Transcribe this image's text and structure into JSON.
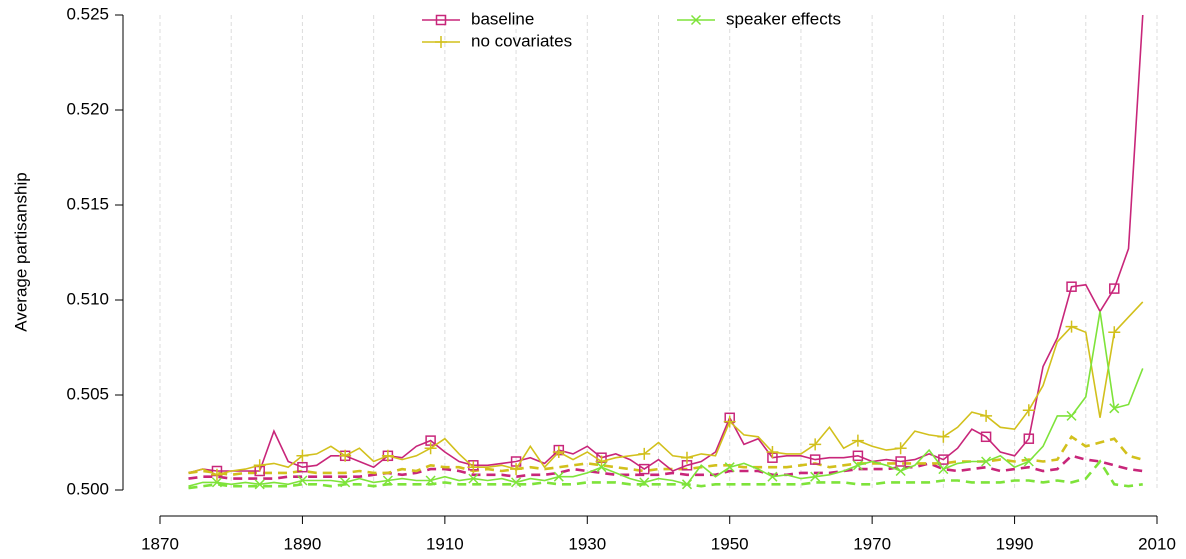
{
  "chart_data": {
    "type": "line",
    "ylabel": "Average partisanship",
    "x": [
      1874,
      1876,
      1878,
      1880,
      1882,
      1884,
      1886,
      1888,
      1890,
      1892,
      1894,
      1896,
      1898,
      1900,
      1902,
      1904,
      1906,
      1908,
      1910,
      1912,
      1914,
      1916,
      1918,
      1920,
      1922,
      1924,
      1926,
      1928,
      1930,
      1932,
      1934,
      1936,
      1938,
      1940,
      1942,
      1944,
      1946,
      1948,
      1950,
      1952,
      1954,
      1956,
      1958,
      1960,
      1962,
      1964,
      1966,
      1968,
      1970,
      1972,
      1974,
      1976,
      1978,
      1980,
      1982,
      1984,
      1986,
      1988,
      1990,
      1992,
      1994,
      1996,
      1998,
      2000,
      2002,
      2004,
      2006,
      2008
    ],
    "series": [
      {
        "name": "baseline",
        "color": "#c8267a",
        "marker": "square",
        "linestyle": "solid",
        "values": [
          0.5009,
          0.5011,
          0.501,
          0.501,
          0.501,
          0.501,
          0.5031,
          0.5015,
          0.5012,
          0.5013,
          0.5018,
          0.5018,
          0.5015,
          0.5012,
          0.5018,
          0.5017,
          0.5023,
          0.5026,
          0.502,
          0.5015,
          0.5013,
          0.5013,
          0.5014,
          0.5015,
          0.5017,
          0.5014,
          0.5021,
          0.5019,
          0.5023,
          0.5017,
          0.5019,
          0.5016,
          0.5011,
          0.5016,
          0.501,
          0.5013,
          0.5015,
          0.502,
          0.5038,
          0.5024,
          0.5027,
          0.5017,
          0.5018,
          0.5018,
          0.5016,
          0.5017,
          0.5017,
          0.5018,
          0.5015,
          0.5016,
          0.5015,
          0.5016,
          0.5019,
          0.5016,
          0.5022,
          0.5032,
          0.5028,
          0.502,
          0.5018,
          0.5027,
          0.5065,
          0.508,
          0.5107,
          0.5108,
          0.5094,
          0.5106,
          0.5127,
          0.525
        ]
      },
      {
        "name": "no covariates",
        "color": "#d2c01c",
        "marker": "plus",
        "linestyle": "solid",
        "values": [
          0.5009,
          0.5011,
          0.5008,
          0.501,
          0.5011,
          0.5013,
          0.5014,
          0.5012,
          0.5018,
          0.5019,
          0.5023,
          0.5018,
          0.5022,
          0.5015,
          0.5018,
          0.5016,
          0.5018,
          0.5022,
          0.5027,
          0.5019,
          0.5012,
          0.5012,
          0.5013,
          0.5011,
          0.5023,
          0.5012,
          0.502,
          0.5016,
          0.502,
          0.5015,
          0.5017,
          0.5018,
          0.5019,
          0.5025,
          0.5018,
          0.5017,
          0.5019,
          0.5018,
          0.5036,
          0.5029,
          0.5028,
          0.502,
          0.5019,
          0.5019,
          0.5024,
          0.5033,
          0.5022,
          0.5026,
          0.5023,
          0.5021,
          0.5022,
          0.5031,
          0.5029,
          0.5028,
          0.5033,
          0.5041,
          0.5039,
          0.5033,
          0.5032,
          0.5042,
          0.5055,
          0.5078,
          0.5086,
          0.5083,
          0.5038,
          0.5083,
          0.5091,
          0.5099
        ]
      },
      {
        "name": "speaker effects",
        "color": "#7ee33a",
        "marker": "x",
        "linestyle": "solid",
        "values": [
          0.5002,
          0.5004,
          0.5004,
          0.5003,
          0.5004,
          0.5003,
          0.5004,
          0.5003,
          0.5005,
          0.5005,
          0.5005,
          0.5004,
          0.5006,
          0.5004,
          0.5005,
          0.5006,
          0.5005,
          0.5005,
          0.5007,
          0.5005,
          0.5006,
          0.5005,
          0.5006,
          0.5004,
          0.5006,
          0.5005,
          0.5007,
          0.5007,
          0.5009,
          0.5012,
          0.5009,
          0.5006,
          0.5004,
          0.5006,
          0.5005,
          0.5003,
          0.5013,
          0.5007,
          0.5012,
          0.5014,
          0.5011,
          0.5007,
          0.5008,
          0.5006,
          0.5007,
          0.5008,
          0.501,
          0.5013,
          0.5015,
          0.5013,
          0.501,
          0.5013,
          0.5021,
          0.5011,
          0.5014,
          0.5015,
          0.5015,
          0.5018,
          0.5012,
          0.5015,
          0.5023,
          0.5039,
          0.5039,
          0.5049,
          0.5094,
          0.5043,
          0.5045,
          0.5064
        ]
      },
      {
        "color": "#c8267a",
        "linestyle": "dashed",
        "values": [
          0.5006,
          0.5007,
          0.5007,
          0.5006,
          0.5006,
          0.5006,
          0.5006,
          0.5007,
          0.5007,
          0.5007,
          0.5007,
          0.5007,
          0.5007,
          0.5008,
          0.5009,
          0.5008,
          0.5009,
          0.5011,
          0.5011,
          0.501,
          0.5008,
          0.5008,
          0.5008,
          0.5007,
          0.5008,
          0.5008,
          0.5009,
          0.5011,
          0.501,
          0.5009,
          0.5008,
          0.5008,
          0.5008,
          0.5008,
          0.5009,
          0.5008,
          0.5008,
          0.5008,
          0.501,
          0.501,
          0.501,
          0.5008,
          0.5008,
          0.5009,
          0.5009,
          0.5009,
          0.501,
          0.5011,
          0.5011,
          0.5011,
          0.5012,
          0.5012,
          0.5014,
          0.5011,
          0.501,
          0.5011,
          0.5012,
          0.501,
          0.5011,
          0.5012,
          0.501,
          0.5011,
          0.5018,
          0.5016,
          0.5015,
          0.5013,
          0.5011,
          0.501
        ]
      },
      {
        "color": "#d2c01c",
        "linestyle": "dashed",
        "values": [
          0.5009,
          0.501,
          0.5009,
          0.5008,
          0.5009,
          0.5009,
          0.5009,
          0.5009,
          0.501,
          0.5009,
          0.5009,
          0.5009,
          0.501,
          0.5009,
          0.5009,
          0.5011,
          0.501,
          0.5013,
          0.5012,
          0.5012,
          0.501,
          0.5011,
          0.501,
          0.5011,
          0.5012,
          0.5011,
          0.5012,
          0.5013,
          0.5014,
          0.5013,
          0.5012,
          0.5011,
          0.501,
          0.5011,
          0.5011,
          0.5011,
          0.5012,
          0.5013,
          0.5013,
          0.5012,
          0.5012,
          0.5012,
          0.5012,
          0.5013,
          0.5014,
          0.5012,
          0.5013,
          0.5014,
          0.5014,
          0.5014,
          0.5014,
          0.5014,
          0.5014,
          0.5014,
          0.5015,
          0.5015,
          0.5015,
          0.5016,
          0.5015,
          0.5016,
          0.5015,
          0.5016,
          0.5028,
          0.5023,
          0.5025,
          0.5027,
          0.5018,
          0.5016
        ]
      },
      {
        "color": "#7ee33a",
        "linestyle": "dashed",
        "values": [
          0.5001,
          0.5002,
          0.5003,
          0.5002,
          0.5002,
          0.5002,
          0.5002,
          0.5002,
          0.5003,
          0.5003,
          0.5002,
          0.5003,
          0.5003,
          0.5002,
          0.5003,
          0.5003,
          0.5003,
          0.5003,
          0.5004,
          0.5003,
          0.5003,
          0.5003,
          0.5003,
          0.5003,
          0.5003,
          0.5004,
          0.5003,
          0.5003,
          0.5004,
          0.5004,
          0.5004,
          0.5003,
          0.5003,
          0.5003,
          0.5003,
          0.5003,
          0.5002,
          0.5003,
          0.5003,
          0.5003,
          0.5003,
          0.5003,
          0.5003,
          0.5003,
          0.5004,
          0.5004,
          0.5004,
          0.5003,
          0.5003,
          0.5004,
          0.5004,
          0.5004,
          0.5004,
          0.5005,
          0.5005,
          0.5004,
          0.5004,
          0.5004,
          0.5005,
          0.5005,
          0.5004,
          0.5005,
          0.5004,
          0.5006,
          0.5015,
          0.5003,
          0.5002,
          0.5003
        ]
      }
    ],
    "xlim": [
      1870,
      2010
    ],
    "xticks": [
      1870,
      1890,
      1910,
      1930,
      1950,
      1970,
      1990,
      2010
    ],
    "xgrid": [
      1870,
      1880,
      1890,
      1900,
      1910,
      1920,
      1930,
      1940,
      1950,
      1960,
      1970,
      1980,
      1990,
      2000,
      2010
    ],
    "ylim": [
      0.5,
      0.525
    ],
    "yticks": [
      {
        "value": 0.5,
        "label": "0.500"
      },
      0.505,
      {
        "value": 0.51,
        "label": "0.510"
      },
      0.515,
      {
        "value": 0.52,
        "label": "0.520"
      },
      0.525
    ],
    "legend": "top"
  }
}
